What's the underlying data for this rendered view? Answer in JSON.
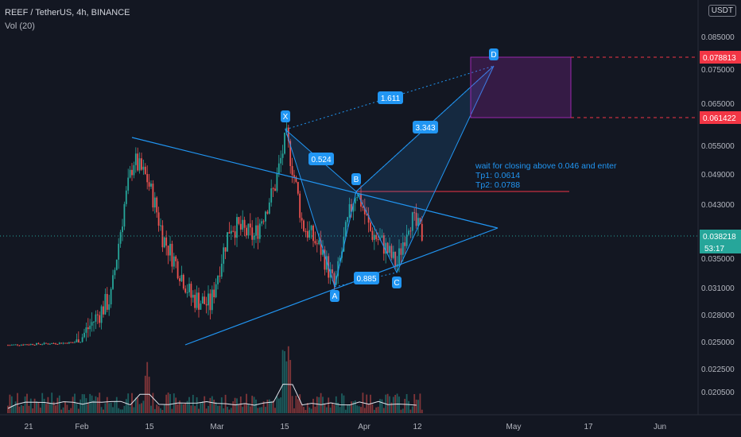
{
  "header": {
    "symbol_line": "REEF / TetherUS, 4h, BINANCE",
    "indicator_line": "Vol (20)",
    "currency_button": "USDT"
  },
  "colors": {
    "background": "#131722",
    "up": "#26a69a",
    "down": "#ef5350",
    "pattern_line": "#2196f3",
    "label_bg": "#2196f3",
    "target_box": "#9c27b0",
    "price_tag": "#f23645",
    "current_tag": "#26a69a",
    "resistance_line": "#f23645"
  },
  "chart_data": {
    "type": "candlestick",
    "yaxis_ticks": [
      "0.085000",
      "0.075000",
      "0.065000",
      "0.055000",
      "0.049000",
      "0.043000",
      "0.035000",
      "0.031000",
      "0.028000",
      "0.025000",
      "0.022500",
      "0.020500"
    ],
    "xaxis_ticks": [
      "21",
      "Feb",
      "15",
      "Mar",
      "15",
      "Apr",
      "12",
      "May",
      "17",
      "Jun"
    ],
    "price_tags": [
      "0.078813",
      "0.061422",
      "0.038218"
    ],
    "countdown": "53:17",
    "pattern_points": [
      {
        "label": "X",
        "date": "Mar 16",
        "price": 0.059
      },
      {
        "label": "A",
        "date": "Mar 29",
        "price": 0.031
      },
      {
        "label": "B",
        "date": "Apr 1",
        "price": 0.0465
      },
      {
        "label": "C",
        "date": "Apr 9",
        "price": 0.0333
      },
      {
        "label": "D",
        "date": "Apr 27",
        "price": 0.0788
      }
    ],
    "ratios": [
      "0.524",
      "0.885",
      "3.343",
      "1.611"
    ],
    "annotation": [
      "wait for closing above 0.046 and enter",
      "Tp1: 0.0614",
      "Tp2: 0.0788"
    ],
    "volume_indicator": "Vol (20)"
  }
}
